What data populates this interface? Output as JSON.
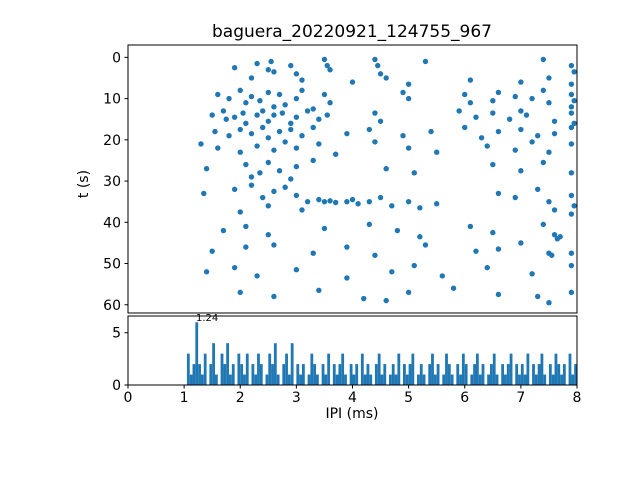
{
  "figure": {
    "title": "baguera_20220921_124755_967",
    "background": "#ffffff",
    "accent_color": "#1f77b4"
  },
  "chart_data": [
    {
      "type": "scatter",
      "title": "baguera_20220921_124755_967",
      "xlabel": "",
      "ylabel": "t (s)",
      "xlim": [
        0,
        8
      ],
      "ylim": [
        -3,
        62
      ],
      "y_inverted": true,
      "yticks": [
        0,
        10,
        20,
        30,
        40,
        50,
        60
      ],
      "marker_color": "#1f77b4",
      "points": [
        [
          1.9,
          2.5
        ],
        [
          2.3,
          1.5
        ],
        [
          2.5,
          3
        ],
        [
          2.55,
          1
        ],
        [
          2.6,
          3.5
        ],
        [
          2.9,
          2
        ],
        [
          3.0,
          4
        ],
        [
          3.5,
          0.5
        ],
        [
          3.55,
          2
        ],
        [
          3.6,
          3
        ],
        [
          4.4,
          0.5
        ],
        [
          4.45,
          2
        ],
        [
          4.5,
          4
        ],
        [
          5.3,
          1
        ],
        [
          7.4,
          0.5
        ],
        [
          7.9,
          2
        ],
        [
          7.95,
          3.5
        ],
        [
          2.2,
          5
        ],
        [
          3.1,
          5.5
        ],
        [
          4.0,
          6
        ],
        [
          4.6,
          5
        ],
        [
          5.0,
          6.5
        ],
        [
          6.1,
          5.5
        ],
        [
          7.0,
          6
        ],
        [
          7.5,
          5
        ],
        [
          7.9,
          6.5
        ],
        [
          1.6,
          9
        ],
        [
          1.8,
          10
        ],
        [
          2.0,
          8
        ],
        [
          2.1,
          11
        ],
        [
          2.2,
          9.5
        ],
        [
          2.35,
          10.5
        ],
        [
          2.5,
          8.5
        ],
        [
          2.6,
          12
        ],
        [
          2.7,
          9
        ],
        [
          2.8,
          11.5
        ],
        [
          3.0,
          10
        ],
        [
          3.1,
          8
        ],
        [
          3.3,
          12.5
        ],
        [
          3.5,
          9
        ],
        [
          3.6,
          11
        ],
        [
          4.9,
          8.5
        ],
        [
          5.0,
          10
        ],
        [
          6.0,
          9
        ],
        [
          6.1,
          11
        ],
        [
          6.5,
          10.5
        ],
        [
          6.6,
          8.5
        ],
        [
          6.9,
          9.5
        ],
        [
          7.2,
          10
        ],
        [
          7.4,
          8
        ],
        [
          7.5,
          11
        ],
        [
          7.9,
          9
        ],
        [
          7.95,
          10.5
        ],
        [
          7.9,
          12
        ],
        [
          1.5,
          14
        ],
        [
          1.7,
          13
        ],
        [
          1.75,
          15
        ],
        [
          1.9,
          14.5
        ],
        [
          2.05,
          13.5
        ],
        [
          2.1,
          16
        ],
        [
          2.3,
          14
        ],
        [
          2.4,
          13
        ],
        [
          2.5,
          15.5
        ],
        [
          2.6,
          14
        ],
        [
          2.75,
          13.5
        ],
        [
          2.9,
          16
        ],
        [
          3.0,
          14.5
        ],
        [
          3.2,
          13
        ],
        [
          3.4,
          15
        ],
        [
          3.55,
          14
        ],
        [
          4.4,
          13.5
        ],
        [
          4.5,
          15.5
        ],
        [
          5.9,
          13
        ],
        [
          6.2,
          14.5
        ],
        [
          6.5,
          13.5
        ],
        [
          6.8,
          15
        ],
        [
          7.0,
          13
        ],
        [
          7.1,
          14
        ],
        [
          7.6,
          15.5
        ],
        [
          7.9,
          13.5
        ],
        [
          7.95,
          16
        ],
        [
          1.55,
          18
        ],
        [
          1.8,
          19
        ],
        [
          2.0,
          17.5
        ],
        [
          2.2,
          18.5
        ],
        [
          2.4,
          17
        ],
        [
          2.5,
          19.5
        ],
        [
          2.7,
          18
        ],
        [
          2.9,
          17.5
        ],
        [
          3.1,
          19
        ],
        [
          3.3,
          17
        ],
        [
          3.9,
          18.5
        ],
        [
          4.3,
          17.5
        ],
        [
          4.9,
          19
        ],
        [
          5.4,
          18
        ],
        [
          6.0,
          17
        ],
        [
          6.3,
          19.5
        ],
        [
          6.6,
          18
        ],
        [
          7.0,
          17.5
        ],
        [
          7.3,
          19
        ],
        [
          7.6,
          18.5
        ],
        [
          7.9,
          17
        ],
        [
          1.3,
          21
        ],
        [
          1.6,
          22
        ],
        [
          2.0,
          23
        ],
        [
          2.3,
          21.5
        ],
        [
          2.6,
          22.5
        ],
        [
          2.8,
          20.5
        ],
        [
          3.0,
          22
        ],
        [
          3.4,
          21
        ],
        [
          3.7,
          23.5
        ],
        [
          4.4,
          20.5
        ],
        [
          5.0,
          22
        ],
        [
          5.5,
          23
        ],
        [
          6.4,
          21.5
        ],
        [
          6.9,
          22.5
        ],
        [
          7.2,
          20.5
        ],
        [
          7.5,
          23
        ],
        [
          7.9,
          21
        ],
        [
          1.4,
          27
        ],
        [
          2.1,
          26
        ],
        [
          2.35,
          28
        ],
        [
          2.5,
          25.5
        ],
        [
          2.7,
          27.5
        ],
        [
          3.0,
          26.5
        ],
        [
          3.3,
          25
        ],
        [
          4.6,
          27
        ],
        [
          5.1,
          28
        ],
        [
          6.5,
          26
        ],
        [
          7.0,
          27.5
        ],
        [
          7.4,
          25.5
        ],
        [
          7.9,
          28
        ],
        [
          2.2,
          29
        ],
        [
          2.9,
          29.5
        ],
        [
          1.35,
          33
        ],
        [
          1.9,
          32
        ],
        [
          2.2,
          31
        ],
        [
          2.4,
          34
        ],
        [
          2.6,
          32.5
        ],
        [
          2.8,
          31.5
        ],
        [
          3.0,
          33.5
        ],
        [
          3.2,
          35
        ],
        [
          3.4,
          34.5
        ],
        [
          3.5,
          35
        ],
        [
          3.6,
          34.8
        ],
        [
          3.7,
          35.2
        ],
        [
          3.9,
          35
        ],
        [
          4.0,
          34.5
        ],
        [
          4.1,
          35.5
        ],
        [
          4.3,
          35
        ],
        [
          4.5,
          34
        ],
        [
          4.7,
          36
        ],
        [
          5.0,
          35
        ],
        [
          5.2,
          36.5
        ],
        [
          5.5,
          35.5
        ],
        [
          6.6,
          33
        ],
        [
          6.9,
          34
        ],
        [
          7.3,
          32
        ],
        [
          7.5,
          35
        ],
        [
          7.6,
          37
        ],
        [
          7.9,
          33.5
        ],
        [
          7.95,
          36
        ],
        [
          7.9,
          38
        ],
        [
          3.1,
          37
        ],
        [
          2.5,
          36
        ],
        [
          2.0,
          37.5
        ],
        [
          1.7,
          42
        ],
        [
          2.1,
          41
        ],
        [
          2.5,
          43
        ],
        [
          3.5,
          41.5
        ],
        [
          4.3,
          40.5
        ],
        [
          4.8,
          42
        ],
        [
          5.2,
          43.5
        ],
        [
          6.1,
          41
        ],
        [
          6.5,
          42.5
        ],
        [
          7.4,
          40.5
        ],
        [
          7.6,
          43
        ],
        [
          7.65,
          44
        ],
        [
          7.7,
          43.5
        ],
        [
          1.5,
          47
        ],
        [
          2.1,
          46
        ],
        [
          2.6,
          45.5
        ],
        [
          3.3,
          47.5
        ],
        [
          3.9,
          46
        ],
        [
          4.4,
          48
        ],
        [
          5.3,
          45.5
        ],
        [
          6.2,
          47
        ],
        [
          6.6,
          46.5
        ],
        [
          7.0,
          45
        ],
        [
          7.5,
          47.5
        ],
        [
          7.55,
          48
        ],
        [
          7.9,
          47.5
        ],
        [
          1.4,
          52
        ],
        [
          1.9,
          51
        ],
        [
          2.3,
          53
        ],
        [
          3.0,
          51.5
        ],
        [
          3.9,
          53.5
        ],
        [
          4.7,
          52
        ],
        [
          5.1,
          50.5
        ],
        [
          5.6,
          53
        ],
        [
          6.4,
          51
        ],
        [
          7.2,
          52.5
        ],
        [
          7.9,
          50.5
        ],
        [
          2.0,
          57
        ],
        [
          2.6,
          58
        ],
        [
          3.4,
          56.5
        ],
        [
          4.2,
          58.5
        ],
        [
          5.0,
          57
        ],
        [
          5.8,
          56
        ],
        [
          6.6,
          57.5
        ],
        [
          7.3,
          58
        ],
        [
          7.9,
          57
        ],
        [
          7.5,
          59.5
        ],
        [
          4.6,
          59
        ]
      ]
    },
    {
      "type": "bar",
      "xlabel": "IPI (ms)",
      "ylabel": "",
      "xlim": [
        0,
        8
      ],
      "ylim": [
        0,
        6.6
      ],
      "xticks": [
        0,
        1,
        2,
        3,
        4,
        5,
        6,
        7,
        8
      ],
      "yticks": [
        0,
        5
      ],
      "bar_color": "#1f77b4",
      "bin_start": 0,
      "bin_width": 0.05,
      "counts": [
        0,
        0,
        0,
        0,
        0,
        0,
        0,
        0,
        0,
        0,
        0,
        0,
        0,
        0,
        0,
        0,
        0,
        0,
        0,
        0,
        0,
        3,
        1,
        2,
        6,
        2,
        1,
        3,
        0,
        2,
        4,
        1,
        0,
        3,
        2,
        4,
        1,
        2,
        0,
        3,
        2,
        1,
        3,
        0,
        2,
        1,
        3,
        2,
        0,
        1,
        3,
        2,
        4,
        1,
        0,
        2,
        3,
        1,
        4,
        0,
        2,
        1,
        2,
        0,
        1,
        3,
        2,
        1,
        0,
        2,
        1,
        3,
        0,
        2,
        1,
        2,
        3,
        1,
        0,
        2,
        1,
        2,
        0,
        3,
        1,
        2,
        1,
        0,
        2,
        3,
        1,
        2,
        0,
        1,
        2,
        1,
        3,
        0,
        2,
        1,
        2,
        3,
        0,
        1,
        2,
        1,
        0,
        2,
        3,
        1,
        2,
        0,
        1,
        3,
        2,
        1,
        0,
        2,
        1,
        3,
        2,
        0,
        1,
        2,
        3,
        1,
        2,
        0,
        1,
        2,
        3,
        1,
        0,
        2,
        1,
        2,
        3,
        0,
        2,
        1,
        2,
        1,
        3,
        0,
        2,
        1,
        2,
        3,
        1,
        0,
        2,
        1,
        3,
        2,
        1,
        2,
        0,
        3,
        1,
        2
      ],
      "annotation": {
        "text": "1.24",
        "x": 1.24,
        "y": 6.1
      }
    }
  ]
}
